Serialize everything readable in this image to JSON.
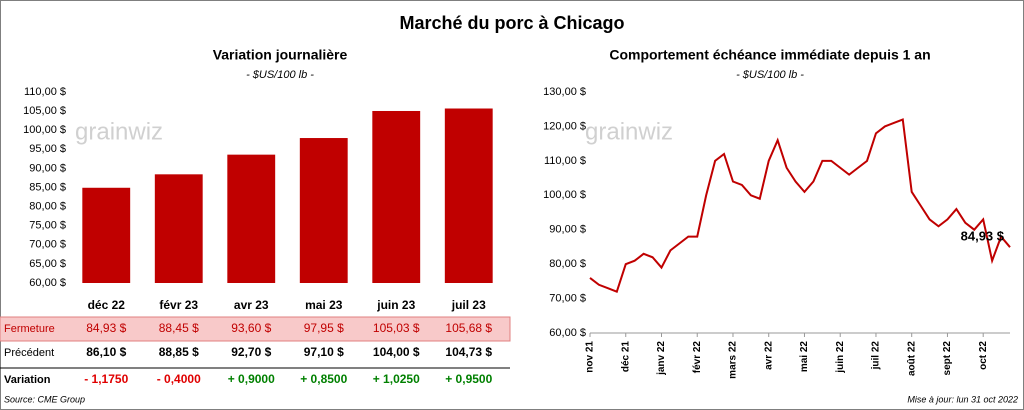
{
  "title": "Marché du porc à Chicago",
  "source": "Source: CME Group",
  "updated": "Mise à jour: lun 31 oct 2022",
  "watermark": "grainwiz",
  "chart_data": [
    {
      "type": "bar",
      "title": "Variation journalière",
      "subtitle": "- $US/100 lb -",
      "categories": [
        "déc 22",
        "févr 23",
        "avr 23",
        "mai 23",
        "juin 23",
        "juil 23"
      ],
      "values": [
        84.93,
        88.45,
        93.6,
        97.95,
        105.03,
        105.68
      ],
      "value_labels": [
        "84,93 $",
        "88,45 $",
        "93,60 $",
        "97,95 $",
        "105,03 $",
        "105,68 $"
      ],
      "color": "#c00000",
      "ylim": [
        60,
        110
      ],
      "yticks": [
        {
          "value": 60,
          "label": "60,00 $"
        },
        {
          "value": 65,
          "label": "65,00 $"
        },
        {
          "value": 70,
          "label": "70,00 $"
        },
        {
          "value": 75,
          "label": "75,00 $"
        },
        {
          "value": 80,
          "label": "80,00 $"
        },
        {
          "value": 85,
          "label": "85,00 $"
        },
        {
          "value": 90,
          "label": "90,00 $"
        },
        {
          "value": 95,
          "label": "95,00 $"
        },
        {
          "value": 100,
          "label": "100,00 $"
        },
        {
          "value": 105,
          "label": "105,00 $"
        },
        {
          "value": 110,
          "label": "110,00 $"
        }
      ]
    },
    {
      "type": "line",
      "title": "Comportement échéance immédiate depuis 1 an",
      "subtitle": "- $US/100 lb -",
      "categories": [
        "nov 21",
        null,
        null,
        null,
        "déc 21",
        null,
        null,
        null,
        "janv 22",
        null,
        null,
        null,
        "févr 22",
        null,
        null,
        null,
        "mars 22",
        null,
        null,
        null,
        "avr 22",
        null,
        null,
        null,
        "mai 22",
        null,
        null,
        null,
        "juin 22",
        null,
        null,
        null,
        "juil 22",
        null,
        null,
        null,
        "août 22",
        null,
        null,
        null,
        "sept 22",
        null,
        null,
        null,
        "oct 22",
        null,
        null,
        null
      ],
      "values": [
        76,
        74,
        73,
        72,
        80,
        81,
        83,
        82,
        79,
        84,
        86,
        88,
        88,
        100,
        110,
        112,
        104,
        103,
        100,
        99,
        110,
        116,
        108,
        104,
        101,
        104,
        110,
        110,
        108,
        106,
        108,
        110,
        118,
        120,
        121,
        122,
        101,
        97,
        93,
        91,
        93,
        96,
        92,
        90,
        93,
        81,
        88,
        84.93
      ],
      "last_label": "84,93 $",
      "color": "#c00000",
      "ylim": [
        60,
        130
      ],
      "yticks": [
        {
          "value": 60,
          "label": "60,00 $"
        },
        {
          "value": 70,
          "label": "70,00 $"
        },
        {
          "value": 80,
          "label": "80,00 $"
        },
        {
          "value": 90,
          "label": "90,00 $"
        },
        {
          "value": 100,
          "label": "100,00 $"
        },
        {
          "value": 110,
          "label": "110,00 $"
        },
        {
          "value": 120,
          "label": "120,00 $"
        },
        {
          "value": 130,
          "label": "130,00 $"
        }
      ]
    }
  ],
  "table": {
    "rows": [
      {
        "label": "Fermeture"
      },
      {
        "label": "Précédent",
        "cells": [
          "86,10 $",
          "88,85 $",
          "92,70 $",
          "97,10 $",
          "104,00 $",
          "104,73 $"
        ]
      },
      {
        "label": "Variation",
        "cells": [
          "- 1,1750",
          "- 0,4000",
          "+ 0,9000",
          "+ 0,8500",
          "+ 1,0250",
          "+ 0,9500"
        ]
      }
    ]
  }
}
